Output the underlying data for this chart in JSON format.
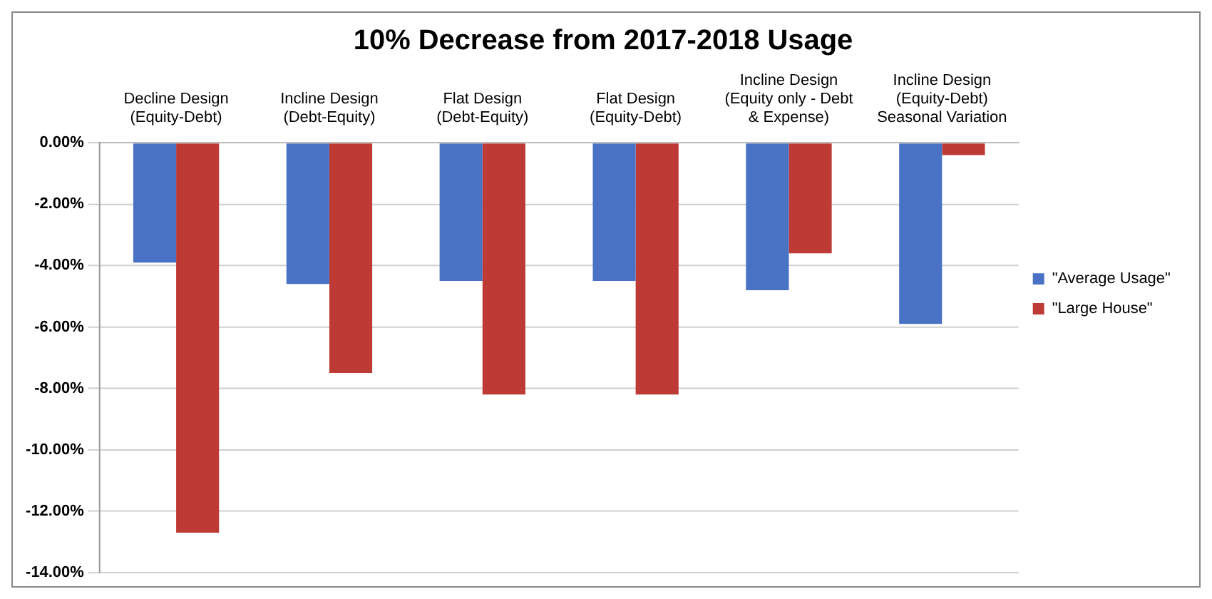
{
  "chart_data": {
    "type": "bar",
    "title": "10% Decrease from 2017-2018 Usage",
    "categories": [
      "Decline Design (Equity-Debt)",
      "Incline Design (Debt-Equity)",
      "Flat Design (Debt-Equity)",
      "Flat Design (Equity-Debt)",
      "Incline Design (Equity only - Debt & Expense)",
      "Incline Design (Equity-Debt) Seasonal Variation"
    ],
    "series": [
      {
        "name": "\"Average Usage\"",
        "color": "#4a72c4",
        "values": [
          -3.9,
          -4.6,
          -4.5,
          -4.5,
          -4.8,
          -5.9
        ]
      },
      {
        "name": "\"Large House\"",
        "color": "#be3a35",
        "values": [
          -12.7,
          -7.5,
          -8.2,
          -8.2,
          -3.6,
          -0.4
        ]
      }
    ],
    "ylim": [
      -14,
      0
    ],
    "yticks": [
      {
        "value": 0,
        "label": "0.00%"
      },
      {
        "value": -2,
        "label": "-2.00%"
      },
      {
        "value": -4,
        "label": "-4.00%"
      },
      {
        "value": -6,
        "label": "-6.00%"
      },
      {
        "value": -8,
        "label": "-8.00%"
      },
      {
        "value": -10,
        "label": "-10.00%"
      },
      {
        "value": -12,
        "label": "-12.00%"
      },
      {
        "value": -14,
        "label": "-14.00%"
      }
    ],
    "grid": "y",
    "legend": "right"
  }
}
